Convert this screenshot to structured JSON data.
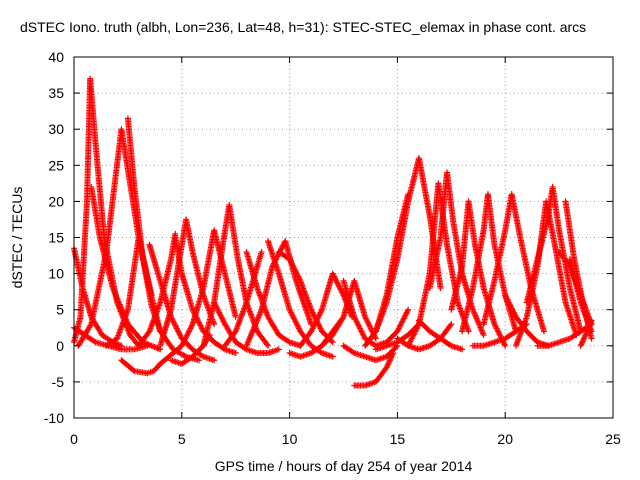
{
  "chart_data": {
    "type": "scatter",
    "title": "dSTEC Iono. truth (albh, Lon=236, Lat=48, h=31): STEC-STEC_elemax in phase cont. arcs",
    "xlabel": "GPS time / hours of day 254 of year 2014",
    "ylabel": "dSTEC  / TECUs",
    "xlim": [
      0,
      25
    ],
    "ylim": [
      -10,
      40
    ],
    "xticks": [
      0,
      5,
      10,
      15,
      20,
      25
    ],
    "yticks": [
      -10,
      -5,
      0,
      5,
      10,
      15,
      20,
      25,
      30,
      35,
      40
    ],
    "grid": true,
    "marker": "+",
    "color": "#ff0000",
    "series": [
      {
        "x": [
          0.0,
          0.4,
          0.8,
          1.3,
          1.8,
          2.2
        ],
        "y": [
          13.5,
          8.0,
          4.0,
          1.5,
          0.5,
          0.0
        ]
      },
      {
        "x": [
          0.0,
          0.3,
          0.6,
          0.75,
          1.0,
          1.4,
          2.0,
          2.6,
          3.0
        ],
        "y": [
          0.5,
          4.0,
          20.0,
          37.0,
          28.0,
          15.0,
          6.0,
          1.5,
          0.0
        ]
      },
      {
        "x": [
          0.0,
          0.5,
          1.0,
          1.6,
          2.2,
          2.8,
          3.4
        ],
        "y": [
          2.5,
          1.5,
          0.5,
          0.0,
          -0.5,
          -0.5,
          0.0
        ]
      },
      {
        "x": [
          0.2,
          0.8,
          1.5,
          2.2,
          3.0,
          3.6
        ],
        "y": [
          0.0,
          3.0,
          13.0,
          30.0,
          15.0,
          7.0
        ]
      },
      {
        "x": [
          0.8,
          1.2,
          1.8,
          2.5,
          3.2,
          4.0
        ],
        "y": [
          22.0,
          15.0,
          8.0,
          3.0,
          0.5,
          -0.5
        ]
      },
      {
        "x": [
          1.5,
          2.0,
          2.5,
          3.0,
          3.5,
          4.0
        ],
        "y": [
          0.0,
          1.0,
          5.0,
          15.0,
          8.0,
          2.0
        ]
      },
      {
        "x": [
          2.5,
          2.8,
          3.2,
          3.6,
          4.0,
          4.6,
          5.2,
          5.8
        ],
        "y": [
          31.5,
          22.0,
          12.0,
          5.5,
          2.0,
          -0.5,
          -1.5,
          -2.0
        ]
      },
      {
        "x": [
          2.2,
          2.8,
          3.4,
          3.7,
          4.0,
          4.6,
          5.0
        ],
        "y": [
          -2.0,
          -3.5,
          -3.8,
          -3.5,
          -2.5,
          -1.0,
          0.0
        ]
      },
      {
        "x": [
          3.5,
          4.0,
          4.5,
          5.0,
          5.5,
          6.0,
          6.5
        ],
        "y": [
          14.0,
          9.0,
          4.0,
          1.0,
          -0.5,
          -1.5,
          -2.0
        ]
      },
      {
        "x": [
          3.0,
          3.5,
          4.0,
          4.5,
          4.7
        ],
        "y": [
          0.0,
          2.0,
          6.0,
          12.0,
          15.5
        ]
      },
      {
        "x": [
          4.7,
          5.0,
          5.5,
          6.0,
          6.5,
          7.0,
          7.5
        ],
        "y": [
          15.0,
          10.0,
          5.0,
          2.0,
          0.5,
          -0.5,
          -1.0
        ]
      },
      {
        "x": [
          4.0,
          4.5,
          5.0,
          5.2,
          5.5,
          6.0,
          6.5
        ],
        "y": [
          0.0,
          5.0,
          14.0,
          17.5,
          13.0,
          7.0,
          3.0
        ]
      },
      {
        "x": [
          4.5,
          5.0,
          5.5,
          6.0,
          6.3
        ],
        "y": [
          -2.0,
          -2.5,
          -1.5,
          0.0,
          1.5
        ]
      },
      {
        "x": [
          5.0,
          5.5,
          6.0,
          6.5,
          7.0,
          7.5
        ],
        "y": [
          0.0,
          3.0,
          8.0,
          16.0,
          10.0,
          4.0
        ]
      },
      {
        "x": [
          6.0,
          6.5,
          6.9,
          7.2,
          7.6,
          8.0,
          8.5,
          9.0
        ],
        "y": [
          0.0,
          6.0,
          14.0,
          19.5,
          12.0,
          6.0,
          2.0,
          0.0
        ]
      },
      {
        "x": [
          6.5,
          7.0,
          7.5,
          8.0,
          8.5,
          9.0,
          9.5
        ],
        "y": [
          6.0,
          3.0,
          0.5,
          -0.5,
          -1.0,
          -1.0,
          -0.5
        ]
      },
      {
        "x": [
          7.0,
          7.5,
          8.0,
          8.5,
          8.7
        ],
        "y": [
          0.0,
          2.0,
          6.0,
          11.0,
          13.0
        ]
      },
      {
        "x": [
          8.0,
          8.5,
          9.0,
          9.5,
          10.0,
          10.5
        ],
        "y": [
          13.0,
          8.0,
          4.0,
          1.5,
          0.5,
          0.0
        ]
      },
      {
        "x": [
          8.0,
          8.7,
          9.2,
          9.8,
          10.3,
          11.0
        ],
        "y": [
          0.0,
          5.0,
          11.0,
          14.5,
          9.0,
          3.0
        ]
      },
      {
        "x": [
          9.0,
          9.5,
          10.0,
          10.5,
          11.0,
          11.5,
          12.0
        ],
        "y": [
          14.5,
          10.0,
          5.0,
          2.0,
          0.0,
          -1.0,
          -1.5
        ]
      },
      {
        "x": [
          9.5,
          10.0,
          10.5,
          11.0,
          11.5,
          12.0
        ],
        "y": [
          13.0,
          12.0,
          9.0,
          5.0,
          2.0,
          0.5
        ]
      },
      {
        "x": [
          10.0,
          10.5,
          11.0,
          11.5,
          12.0,
          12.5
        ],
        "y": [
          -1.0,
          -1.5,
          -1.0,
          0.0,
          2.0,
          4.0
        ]
      },
      {
        "x": [
          10.5,
          11.0,
          11.5,
          12.0,
          12.5,
          12.9
        ],
        "y": [
          0.0,
          2.0,
          5.0,
          10.0,
          7.0,
          4.0
        ]
      },
      {
        "x": [
          11.5,
          12.0,
          12.5,
          13.0,
          13.5,
          14.0
        ],
        "y": [
          0.0,
          1.5,
          4.0,
          9.0,
          4.0,
          1.0
        ]
      },
      {
        "x": [
          12.5,
          13.0,
          13.5,
          14.0,
          14.5,
          15.0
        ],
        "y": [
          0.0,
          -1.0,
          -1.5,
          -2.0,
          -1.5,
          0.0
        ]
      },
      {
        "x": [
          13.0,
          13.5,
          14.0,
          14.5,
          14.8
        ],
        "y": [
          -5.5,
          -5.5,
          -5.0,
          -3.0,
          -1.0
        ]
      },
      {
        "x": [
          12.5,
          13.0,
          13.5,
          14.0,
          14.5,
          15.0,
          15.5
        ],
        "y": [
          9.0,
          4.0,
          1.0,
          0.0,
          0.5,
          2.0,
          5.0
        ]
      },
      {
        "x": [
          13.5,
          14.0,
          14.5,
          15.0,
          15.5
        ],
        "y": [
          0.0,
          2.0,
          7.0,
          15.0,
          21.0
        ]
      },
      {
        "x": [
          14.0,
          14.5,
          15.0,
          15.5,
          16.0,
          16.5,
          17.0
        ],
        "y": [
          2.0,
          6.0,
          12.0,
          20.0,
          26.0,
          18.0,
          8.0
        ]
      },
      {
        "x": [
          14.0,
          14.5,
          15.0,
          15.5,
          16.0
        ],
        "y": [
          -0.5,
          0.0,
          0.5,
          1.5,
          3.0
        ]
      },
      {
        "x": [
          15.0,
          15.5,
          16.0,
          16.5,
          17.0,
          17.5
        ],
        "y": [
          1.0,
          0.0,
          -0.5,
          0.0,
          1.0,
          3.0
        ]
      },
      {
        "x": [
          15.5,
          16.0,
          16.5,
          16.9,
          17.3,
          17.8,
          18.3
        ],
        "y": [
          0.0,
          3.0,
          10.0,
          22.5,
          14.0,
          6.0,
          2.0
        ]
      },
      {
        "x": [
          16.5,
          17.0,
          17.3,
          17.6,
          18.0,
          18.5,
          19.0
        ],
        "y": [
          8.0,
          15.0,
          24.0,
          17.0,
          10.0,
          5.0,
          1.5
        ]
      },
      {
        "x": [
          16.0,
          16.5,
          17.0,
          17.5,
          18.0
        ],
        "y": [
          3.5,
          2.0,
          1.0,
          0.0,
          -0.5
        ]
      },
      {
        "x": [
          17.5,
          18.0,
          18.3,
          18.6,
          19.0,
          19.5,
          20.0
        ],
        "y": [
          5.0,
          11.0,
          20.0,
          14.0,
          8.0,
          3.0,
          0.0
        ]
      },
      {
        "x": [
          18.0,
          18.5,
          19.0,
          19.2,
          19.5,
          20.0,
          20.5
        ],
        "y": [
          2.0,
          8.0,
          16.0,
          21.0,
          14.0,
          7.0,
          2.0
        ]
      },
      {
        "x": [
          18.5,
          19.0,
          19.5,
          20.0,
          20.5,
          21.0
        ],
        "y": [
          0.0,
          0.0,
          0.5,
          1.0,
          2.0,
          3.0
        ]
      },
      {
        "x": [
          19.0,
          19.5,
          20.0,
          20.3,
          20.7,
          21.2,
          21.8
        ],
        "y": [
          3.0,
          9.0,
          16.0,
          21.0,
          15.0,
          8.0,
          2.0
        ]
      },
      {
        "x": [
          20.0,
          20.5,
          21.0,
          21.5,
          22.0
        ],
        "y": [
          7.0,
          4.0,
          2.0,
          0.5,
          0.0
        ]
      },
      {
        "x": [
          20.5,
          21.0,
          21.5,
          21.9,
          22.3,
          22.8,
          23.3
        ],
        "y": [
          0.0,
          4.0,
          11.0,
          20.0,
          14.0,
          6.0,
          1.5
        ]
      },
      {
        "x": [
          21.0,
          21.5,
          22.0,
          22.2,
          22.5,
          23.0,
          23.5
        ],
        "y": [
          6.0,
          12.0,
          18.0,
          22.0,
          16.0,
          8.0,
          2.0
        ]
      },
      {
        "x": [
          21.5,
          22.0,
          22.5,
          23.0,
          23.5,
          24.0
        ],
        "y": [
          0.0,
          0.0,
          0.5,
          1.0,
          2.0,
          3.0
        ]
      },
      {
        "x": [
          22.5,
          23.0,
          23.5,
          24.0
        ],
        "y": [
          13.0,
          11.0,
          7.0,
          3.0
        ]
      },
      {
        "x": [
          22.8,
          23.2,
          23.6,
          24.0
        ],
        "y": [
          20.0,
          12.0,
          6.0,
          1.0
        ]
      },
      {
        "x": [
          23.0,
          23.5,
          24.0
        ],
        "y": [
          12.0,
          6.0,
          2.0
        ]
      },
      {
        "x": [
          23.5,
          23.8,
          24.0
        ],
        "y": [
          0.0,
          2.0,
          3.5
        ]
      }
    ]
  }
}
